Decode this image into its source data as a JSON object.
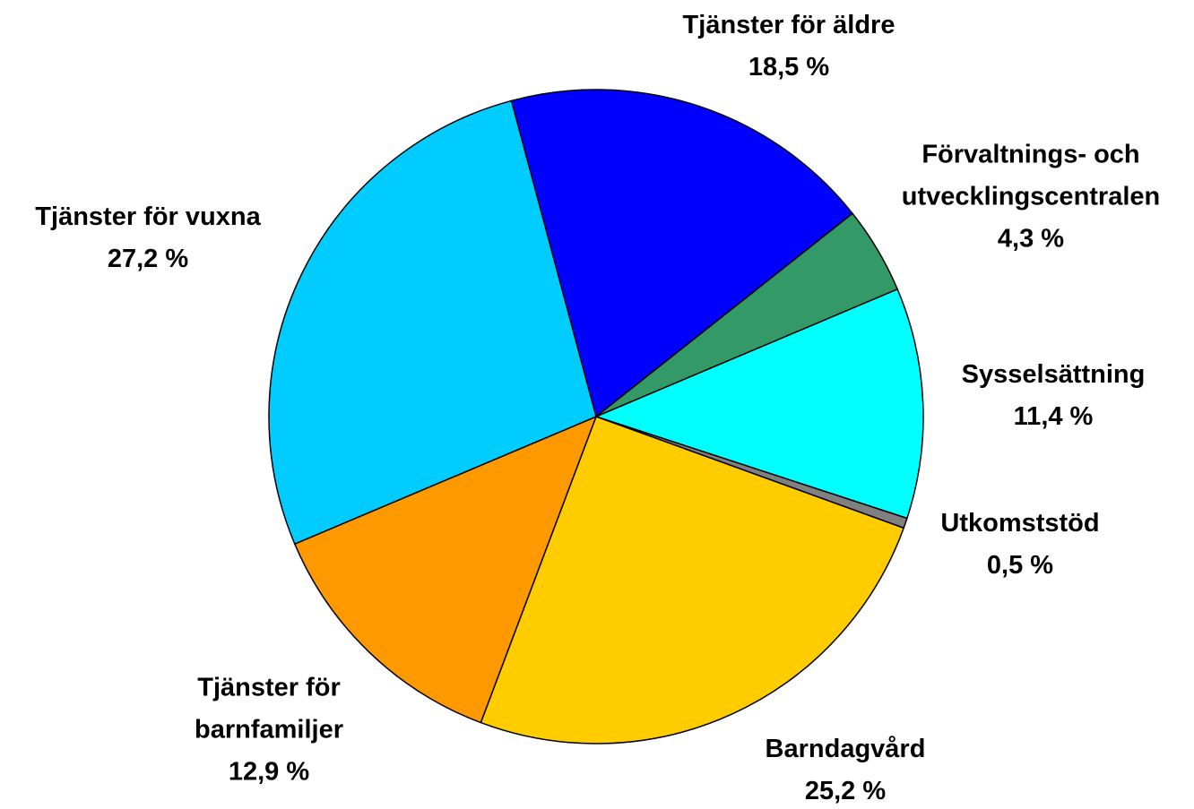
{
  "chart_data": {
    "type": "pie",
    "categories": [
      "Tjänster för äldre",
      "Förvaltnings- och utvecklingscentralen",
      "Sysselsättning",
      "Utkomststöd",
      "Barndagvård",
      "Tjänster för barnfamiljer",
      "Tjänster för vuxna"
    ],
    "values": [
      18.5,
      4.3,
      11.4,
      0.5,
      25.2,
      12.9,
      27.2
    ],
    "value_labels": [
      "18,5 %",
      "4,3 %",
      "11,4 %",
      "0,5 %",
      "25,2 %",
      "12,9 %",
      "27,2 %"
    ],
    "colors": [
      "#0000ff",
      "#339966",
      "#00ffff",
      "#808080",
      "#ffcc00",
      "#ff9900",
      "#00ccff"
    ]
  }
}
